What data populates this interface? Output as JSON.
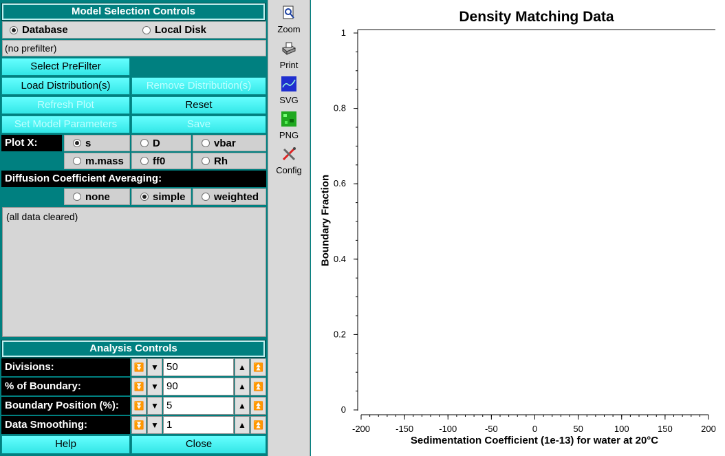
{
  "model": {
    "title": "Model Selection Controls",
    "source": {
      "database": "Database",
      "local": "Local Disk",
      "selected": "database"
    },
    "prefilter_text": "(no prefilter)",
    "buttons": {
      "select_prefilter": "Select PreFilter",
      "load": "Load Distribution(s)",
      "remove": "Remove Distribution(s)",
      "refresh": "Refresh Plot",
      "reset": "Reset",
      "set_params": "Set Model Parameters",
      "save": "Save"
    },
    "plotx": {
      "label": "Plot X:",
      "options": [
        "s",
        "D",
        "vbar",
        "m.mass",
        "ff0",
        "Rh"
      ],
      "selected": "s"
    },
    "diffusion": {
      "label": "Diffusion Coefficient Averaging:",
      "options": [
        "none",
        "simple",
        "weighted"
      ],
      "selected": "simple"
    },
    "status_text": "(all data cleared)"
  },
  "analysis": {
    "title": "Analysis Controls",
    "rows": [
      {
        "label": "Divisions:",
        "value": "50"
      },
      {
        "label": "% of Boundary:",
        "value": "90"
      },
      {
        "label": "Boundary Position (%):",
        "value": "5"
      },
      {
        "label": "Data Smoothing:",
        "value": "1"
      }
    ],
    "help": "Help",
    "close": "Close"
  },
  "toolbar": [
    {
      "label": "Zoom",
      "icon": "zoom-icon"
    },
    {
      "label": "Print",
      "icon": "print-icon"
    },
    {
      "label": "SVG",
      "icon": "svg-icon"
    },
    {
      "label": "PNG",
      "icon": "png-icon"
    },
    {
      "label": "Config",
      "icon": "config-icon"
    }
  ],
  "chart_data": {
    "type": "line",
    "title": "Density Matching Data",
    "xlabel": "Sedimentation Coefficient (1e-13) for water at 20°C",
    "ylabel": "Boundary Fraction",
    "xlim": [
      -200,
      200
    ],
    "ylim": [
      0,
      1
    ],
    "xticks": [
      "-200",
      "-150",
      "-100",
      "-50",
      "0",
      "50",
      "100",
      "150",
      "200"
    ],
    "yticks": [
      "0",
      "0.2",
      "0.4",
      "0.6",
      "0.8",
      "1"
    ],
    "series": []
  }
}
